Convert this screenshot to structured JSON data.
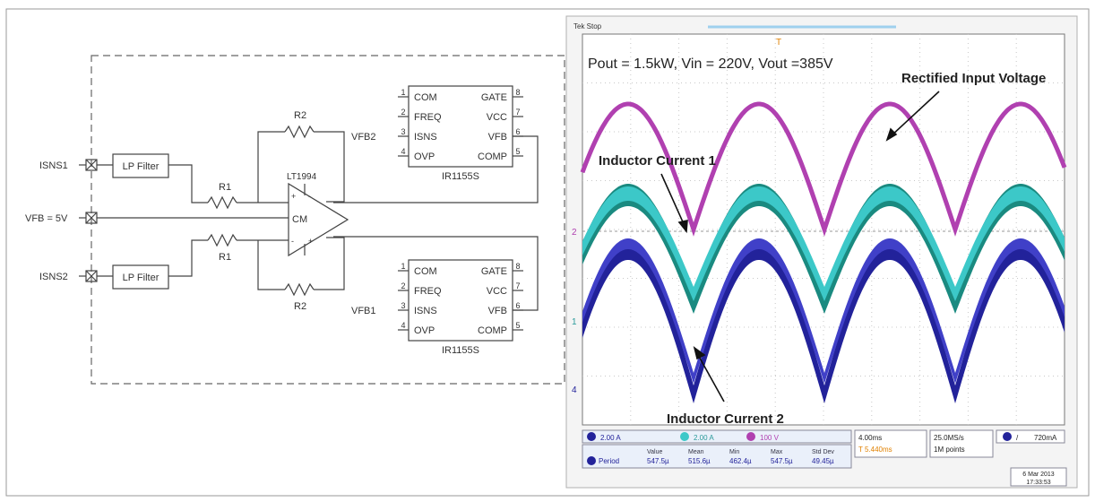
{
  "schematic": {
    "inputs": {
      "isns1": "ISNS1",
      "vfb": "VFB = 5V",
      "isns2": "ISNS2"
    },
    "lp_filter": "LP Filter",
    "resistors": {
      "r1": "R1",
      "r2": "R2"
    },
    "opamp": {
      "name": "LT1994",
      "cm": "CM",
      "plus": "+",
      "minus": "-"
    },
    "nets": {
      "vfb2": "VFB2",
      "vfb1": "VFB1"
    },
    "ic": {
      "name": "IR1155S",
      "left_pins": [
        {
          "num": "1",
          "label": "COM"
        },
        {
          "num": "2",
          "label": "FREQ"
        },
        {
          "num": "3",
          "label": "ISNS"
        },
        {
          "num": "4",
          "label": "OVP"
        }
      ],
      "right_pins": [
        {
          "num": "8",
          "label": "GATE"
        },
        {
          "num": "7",
          "label": "VCC"
        },
        {
          "num": "6",
          "label": "VFB"
        },
        {
          "num": "5",
          "label": "COMP"
        }
      ]
    }
  },
  "scope": {
    "header": "Tek Stop",
    "condition": "Pout = 1.5kW, Vin = 220V, Vout =385V",
    "labels": {
      "rectified": "Rectified Input Voltage",
      "inductor1": "Inductor Current 1",
      "inductor2": "Inductor Current 2"
    },
    "markers": {
      "trig": "T",
      "ch1": "1",
      "ch2": "2",
      "ch4": "4"
    },
    "channels": {
      "ch1": "2.00 A",
      "ch2": "2.00 A",
      "ch3": "100 V"
    },
    "timebase": {
      "scale": "4.00ms",
      "sub": "T 5.440ms"
    },
    "sampling": {
      "rate": "25.0MS/s",
      "points": "1M points"
    },
    "trigger": {
      "level": "720mA"
    },
    "measurement": {
      "name": "Period",
      "headers": [
        "Value",
        "Mean",
        "Min",
        "Max",
        "Std Dev"
      ],
      "values": [
        "547.5µ",
        "515.6µ",
        "462.4µ",
        "547.5µ",
        "49.45µ"
      ]
    },
    "date": {
      "day": "6 Mar 2013",
      "time": "17:33:53"
    },
    "colors": {
      "rectified": "#b040b0",
      "inductor1_outer": "#1a8a80",
      "inductor1_inner": "#3cc8c8",
      "inductor2_outer": "#22229a",
      "inductor2_inner": "#4040c8"
    }
  }
}
